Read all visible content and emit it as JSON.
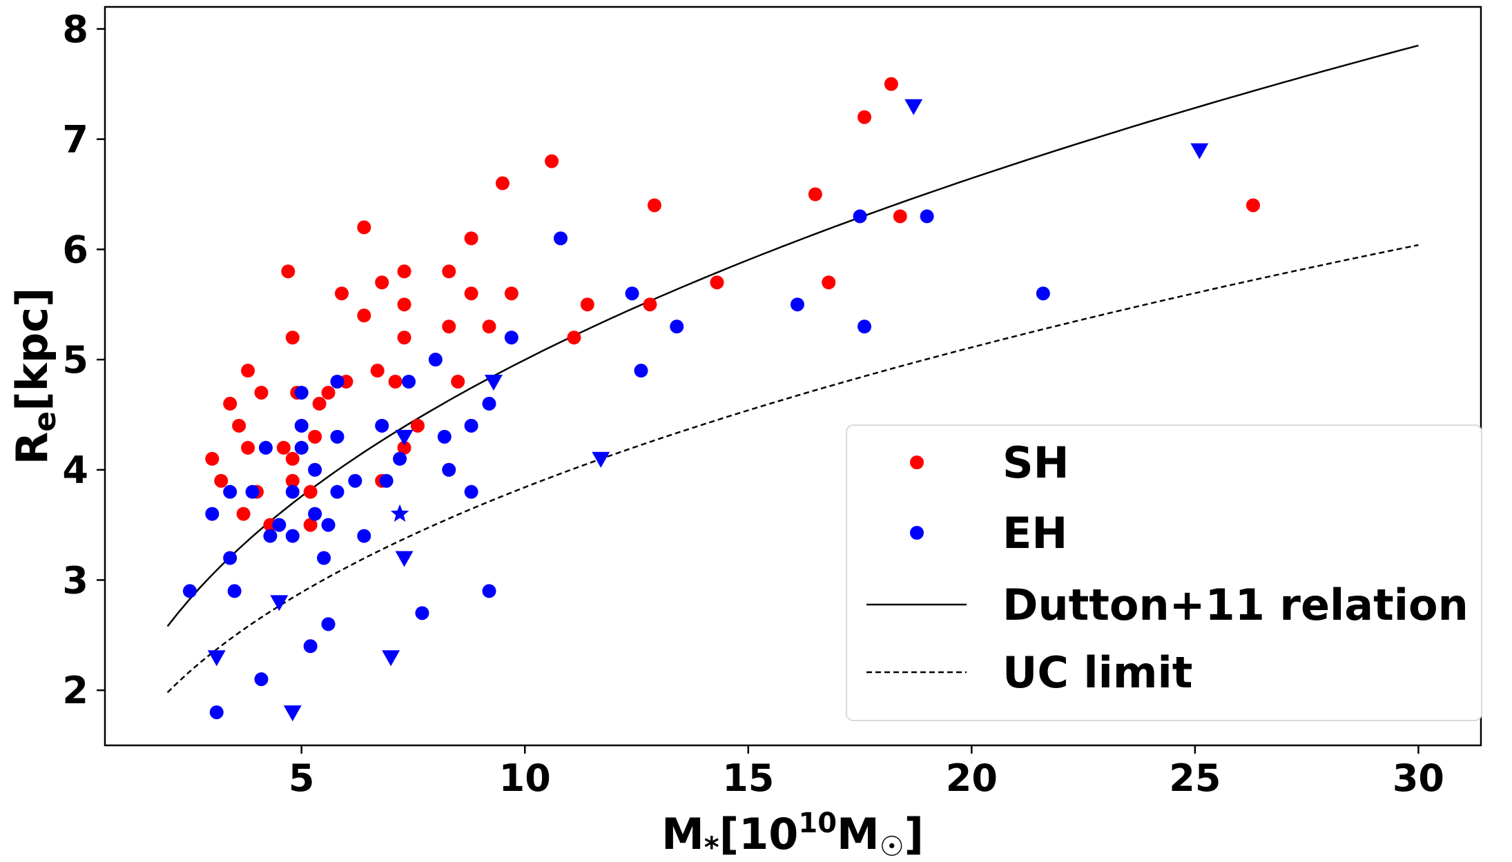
{
  "chart_data": {
    "type": "scatter",
    "xlabel": "M*[10^10 M☉]",
    "ylabel": "Re[kpc]",
    "xlim": [
      0.6,
      31.4
    ],
    "ylim": [
      1.5,
      8.2
    ],
    "xticks": [
      5,
      10,
      15,
      20,
      25,
      30
    ],
    "yticks": [
      2,
      3,
      4,
      5,
      6,
      7,
      8
    ],
    "grid": false,
    "legend_position": "lower-right",
    "legend": [
      {
        "label": "SH",
        "color": "#ff0000",
        "kind": "marker"
      },
      {
        "label": "EH",
        "color": "#0000ff",
        "kind": "marker"
      },
      {
        "label": "Dutton+11 relation",
        "color": "#000000",
        "kind": "line-solid"
      },
      {
        "label": "UC limit",
        "color": "#000000",
        "kind": "line-dashed"
      }
    ],
    "series": [
      {
        "name": "SH",
        "color": "#ff0000",
        "marker": "circle",
        "points": [
          [
            3.0,
            4.1
          ],
          [
            3.2,
            3.9
          ],
          [
            3.4,
            4.6
          ],
          [
            3.6,
            4.4
          ],
          [
            3.7,
            3.6
          ],
          [
            3.8,
            4.9
          ],
          [
            3.8,
            4.2
          ],
          [
            4.0,
            3.8
          ],
          [
            4.1,
            4.7
          ],
          [
            4.3,
            3.5
          ],
          [
            4.6,
            4.2
          ],
          [
            4.7,
            5.8
          ],
          [
            4.8,
            5.2
          ],
          [
            4.8,
            4.1
          ],
          [
            4.8,
            3.9
          ],
          [
            4.9,
            4.7
          ],
          [
            5.2,
            3.8
          ],
          [
            5.2,
            3.5
          ],
          [
            5.3,
            4.3
          ],
          [
            5.4,
            4.6
          ],
          [
            5.6,
            4.7
          ],
          [
            5.9,
            5.6
          ],
          [
            6.0,
            4.8
          ],
          [
            6.4,
            6.2
          ],
          [
            6.4,
            5.4
          ],
          [
            6.7,
            4.9
          ],
          [
            6.8,
            5.7
          ],
          [
            6.8,
            3.9
          ],
          [
            7.1,
            4.8
          ],
          [
            7.3,
            5.8
          ],
          [
            7.3,
            5.5
          ],
          [
            7.3,
            5.2
          ],
          [
            7.3,
            4.2
          ],
          [
            7.6,
            4.4
          ],
          [
            8.3,
            5.8
          ],
          [
            8.3,
            5.3
          ],
          [
            8.5,
            4.8
          ],
          [
            8.8,
            6.1
          ],
          [
            8.8,
            5.6
          ],
          [
            9.2,
            5.3
          ],
          [
            9.5,
            6.6
          ],
          [
            9.7,
            5.6
          ],
          [
            10.6,
            6.8
          ],
          [
            11.1,
            5.2
          ],
          [
            11.4,
            5.5
          ],
          [
            12.9,
            6.4
          ],
          [
            12.8,
            5.5
          ],
          [
            14.3,
            5.7
          ],
          [
            16.5,
            6.5
          ],
          [
            16.8,
            5.7
          ],
          [
            17.6,
            7.2
          ],
          [
            18.2,
            7.5
          ],
          [
            18.4,
            6.3
          ],
          [
            26.3,
            6.4
          ]
        ]
      },
      {
        "name": "EH",
        "color": "#0000ff",
        "marker": "circle",
        "points": [
          [
            2.5,
            2.9
          ],
          [
            3.0,
            3.6
          ],
          [
            3.1,
            1.8
          ],
          [
            3.4,
            3.8
          ],
          [
            3.4,
            3.2
          ],
          [
            3.5,
            2.9
          ],
          [
            3.9,
            3.8
          ],
          [
            4.1,
            2.1
          ],
          [
            4.2,
            4.2
          ],
          [
            4.3,
            3.4
          ],
          [
            4.5,
            3.5
          ],
          [
            4.8,
            3.8
          ],
          [
            4.8,
            3.4
          ],
          [
            5.0,
            4.7
          ],
          [
            5.0,
            4.4
          ],
          [
            5.0,
            4.2
          ],
          [
            5.2,
            2.4
          ],
          [
            5.3,
            4.0
          ],
          [
            5.3,
            3.6
          ],
          [
            5.5,
            3.2
          ],
          [
            5.6,
            3.5
          ],
          [
            5.6,
            2.6
          ],
          [
            5.8,
            4.8
          ],
          [
            5.8,
            4.3
          ],
          [
            5.8,
            3.8
          ],
          [
            6.2,
            3.9
          ],
          [
            6.4,
            3.4
          ],
          [
            6.8,
            4.4
          ],
          [
            6.9,
            3.9
          ],
          [
            7.2,
            4.1
          ],
          [
            7.4,
            4.8
          ],
          [
            7.7,
            2.7
          ],
          [
            8.0,
            5.0
          ],
          [
            8.2,
            4.3
          ],
          [
            8.3,
            4.0
          ],
          [
            8.8,
            4.4
          ],
          [
            8.8,
            3.8
          ],
          [
            9.2,
            4.6
          ],
          [
            9.2,
            2.9
          ],
          [
            9.7,
            5.2
          ],
          [
            10.8,
            6.1
          ],
          [
            12.4,
            5.6
          ],
          [
            12.6,
            4.9
          ],
          [
            13.4,
            5.3
          ],
          [
            16.1,
            5.5
          ],
          [
            17.5,
            6.3
          ],
          [
            17.6,
            5.3
          ],
          [
            19.0,
            6.3
          ],
          [
            21.6,
            5.6
          ]
        ]
      },
      {
        "name": "",
        "color": "#0000ff",
        "marker": "triangle-down",
        "points": [
          [
            3.1,
            2.3
          ],
          [
            4.5,
            2.8
          ],
          [
            4.8,
            1.8
          ],
          [
            7.0,
            2.3
          ],
          [
            7.3,
            4.3
          ],
          [
            7.3,
            3.2
          ],
          [
            9.3,
            4.8
          ],
          [
            11.7,
            4.1
          ],
          [
            18.7,
            7.3
          ],
          [
            25.1,
            6.9
          ]
        ]
      },
      {
        "name": "",
        "color": "#0000ff",
        "marker": "star",
        "points": [
          [
            7.2,
            3.6
          ]
        ]
      }
    ],
    "curves": [
      {
        "name": "Dutton+11 relation",
        "style": "solid",
        "color": "#000000",
        "x": [
          2,
          3,
          4,
          5,
          6,
          7,
          8,
          9,
          10,
          12,
          14,
          16,
          18,
          20,
          22,
          24,
          26,
          28,
          30
        ],
        "y": [
          2.58,
          3.01,
          3.37,
          3.67,
          3.93,
          4.17,
          4.39,
          4.59,
          4.77,
          5.11,
          5.4,
          5.67,
          5.92,
          6.15,
          6.36,
          6.56,
          6.75,
          6.94,
          7.85
        ]
      },
      {
        "name": "UC limit",
        "style": "dashed",
        "color": "#000000",
        "x": [
          2,
          3,
          4,
          5,
          6,
          7,
          8,
          9,
          10,
          12,
          14,
          16,
          18,
          20,
          22,
          24,
          26,
          28,
          30
        ],
        "y": [
          1.98,
          2.34,
          2.65,
          2.91,
          3.13,
          3.33,
          3.51,
          3.67,
          3.83,
          4.11,
          4.36,
          4.59,
          4.8,
          5.0,
          5.18,
          5.35,
          5.52,
          5.68,
          6.04
        ]
      }
    ]
  }
}
